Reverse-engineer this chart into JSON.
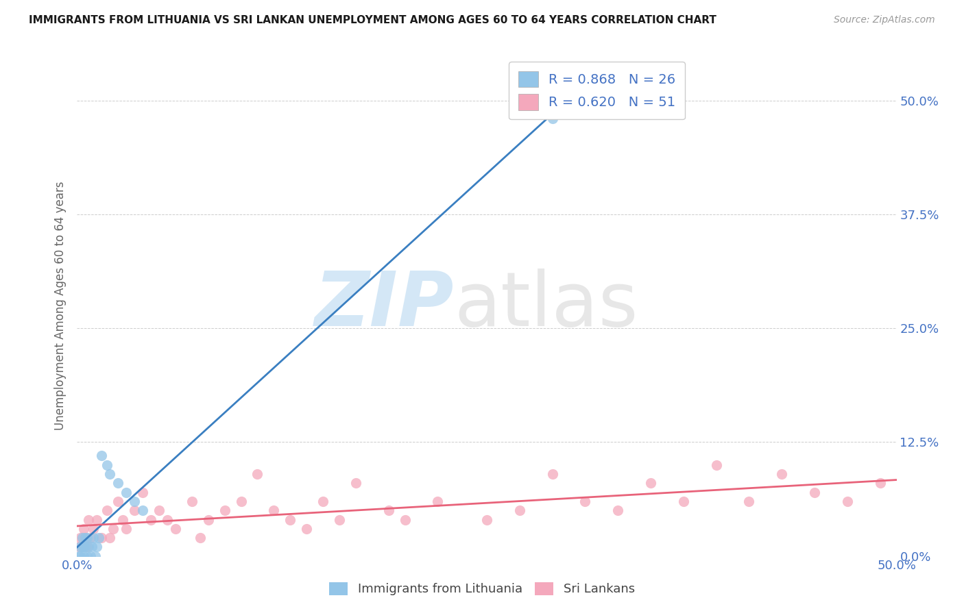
{
  "title": "IMMIGRANTS FROM LITHUANIA VS SRI LANKAN UNEMPLOYMENT AMONG AGES 60 TO 64 YEARS CORRELATION CHART",
  "source": "Source: ZipAtlas.com",
  "ylabel": "Unemployment Among Ages 60 to 64 years",
  "xlim": [
    0.0,
    0.5
  ],
  "ylim": [
    0.0,
    0.55
  ],
  "x_ticks": [
    0.0,
    0.1,
    0.2,
    0.3,
    0.4,
    0.5
  ],
  "x_tick_labels": [
    "0.0%",
    "",
    "",
    "",
    "",
    "50.0%"
  ],
  "y_tick_labels_right": [
    "0.0%",
    "12.5%",
    "25.0%",
    "37.5%",
    "50.0%"
  ],
  "y_ticks_right": [
    0.0,
    0.125,
    0.25,
    0.375,
    0.5
  ],
  "color_blue": "#93c5e8",
  "color_pink": "#f4a8bc",
  "color_blue_line": "#3a7fc1",
  "color_pink_line": "#e8637a",
  "lithuania_x": [
    0.001,
    0.002,
    0.002,
    0.003,
    0.003,
    0.004,
    0.004,
    0.005,
    0.005,
    0.006,
    0.006,
    0.007,
    0.008,
    0.009,
    0.01,
    0.011,
    0.012,
    0.013,
    0.015,
    0.018,
    0.02,
    0.025,
    0.03,
    0.035,
    0.04,
    0.29
  ],
  "lithuania_y": [
    0.0,
    0.01,
    0.0,
    0.02,
    0.01,
    0.0,
    0.01,
    0.02,
    0.01,
    0.0,
    0.02,
    0.01,
    0.0,
    0.01,
    0.02,
    0.0,
    0.01,
    0.02,
    0.11,
    0.1,
    0.09,
    0.08,
    0.07,
    0.06,
    0.05,
    0.48
  ],
  "srilanka_x": [
    0.001,
    0.002,
    0.003,
    0.004,
    0.005,
    0.006,
    0.007,
    0.008,
    0.01,
    0.012,
    0.015,
    0.018,
    0.02,
    0.022,
    0.025,
    0.028,
    0.03,
    0.035,
    0.04,
    0.045,
    0.05,
    0.055,
    0.06,
    0.07,
    0.075,
    0.08,
    0.09,
    0.1,
    0.11,
    0.12,
    0.13,
    0.14,
    0.15,
    0.16,
    0.17,
    0.19,
    0.2,
    0.22,
    0.25,
    0.27,
    0.29,
    0.31,
    0.33,
    0.35,
    0.37,
    0.39,
    0.41,
    0.43,
    0.45,
    0.47,
    0.49
  ],
  "srilanka_y": [
    0.01,
    0.02,
    0.01,
    0.03,
    0.02,
    0.01,
    0.04,
    0.02,
    0.03,
    0.04,
    0.02,
    0.05,
    0.02,
    0.03,
    0.06,
    0.04,
    0.03,
    0.05,
    0.07,
    0.04,
    0.05,
    0.04,
    0.03,
    0.06,
    0.02,
    0.04,
    0.05,
    0.06,
    0.09,
    0.05,
    0.04,
    0.03,
    0.06,
    0.04,
    0.08,
    0.05,
    0.04,
    0.06,
    0.04,
    0.05,
    0.09,
    0.06,
    0.05,
    0.08,
    0.06,
    0.1,
    0.06,
    0.09,
    0.07,
    0.06,
    0.08
  ]
}
